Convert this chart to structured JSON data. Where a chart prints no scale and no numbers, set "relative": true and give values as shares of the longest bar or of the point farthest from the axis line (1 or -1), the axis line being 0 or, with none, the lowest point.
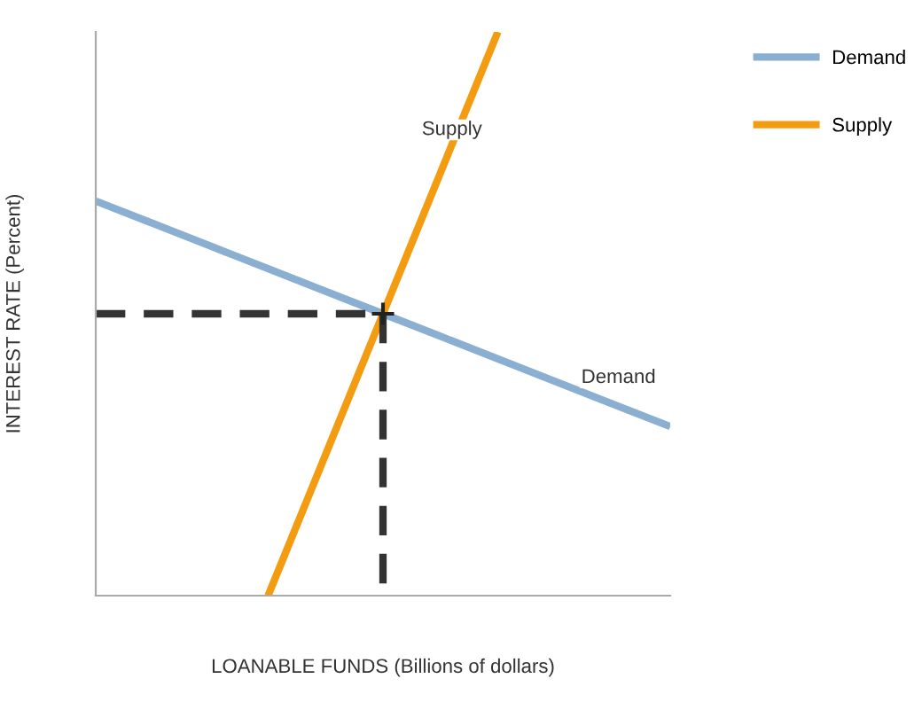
{
  "chart_data": {
    "type": "line",
    "relative": true,
    "xlabel": "LOANABLE FUNDS (Billions of dollars)",
    "ylabel": "INTEREST RATE (Percent)",
    "legend": "top right",
    "categories": [
      null,
      null,
      null,
      null,
      null,
      null,
      null,
      null,
      null,
      null,
      null
    ],
    "series": [
      {
        "name": "Demand",
        "color": "#8aafd0",
        "values": [
          0.7,
          0.66,
          0.62,
          0.58,
          0.54,
          0.5,
          0.46,
          0.42,
          0.38,
          0.34,
          0.3
        ]
      },
      {
        "name": "Supply",
        "color": "#f39c12",
        "values": [
          null,
          null,
          null,
          0,
          0.25,
          0.5,
          0.75,
          1,
          null,
          null,
          null
        ]
      },
      {
        "color": "#333333",
        "values": [
          0.5,
          0.5,
          0.5,
          0.5,
          0.5,
          0.5,
          null,
          null,
          null,
          null,
          null
        ],
        "line_style": "dashed"
      }
    ],
    "annotations": [
      "Supply",
      "Demand"
    ]
  }
}
